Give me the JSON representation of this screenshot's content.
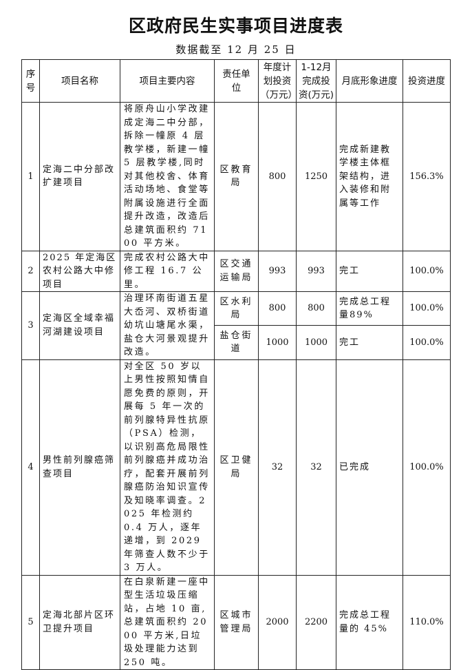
{
  "title": "区政府民生实事项目进度表",
  "subtitle": "数据截至 12 月 25 日",
  "headers": [
    "序号",
    "项目名称",
    "项目主要内容",
    "责任单位",
    "年度计划投资（万元）",
    "1-12月完成投资(万元)",
    "月底形象进度",
    "投资进度"
  ],
  "rows": [
    {
      "no": "1",
      "name": "定海二中分部改扩建项目",
      "content": "将原舟山小学改建成定海二中分部，拆除一幢原 4 层教学楼，新建一幢 5 层教学楼,同时对其他校舍、体育活动场地、食堂等附属设施进行全面提升改造，改造后总建筑面积约 7100 平方米。",
      "unit": "区教育局",
      "plan": "800",
      "done": "1250",
      "progress": "完成新建教学楼主体框架结构，进入装修和附属等工作",
      "invest": "156.3%"
    },
    {
      "no": "2",
      "name": "2025 年定海区农村公路大中修项目",
      "content": "完成农村公路大中修工程 16.7 公里。",
      "unit": "区交通运输局",
      "plan": "993",
      "done": "993",
      "progress": "完工",
      "invest": "100.0%"
    },
    {
      "no": "3",
      "name": "定海区全域幸福河湖建设项目",
      "content": "治理环南街道五星大岙河、双桥街道幼坑山塘尾水渠，盐仓大河景观提升改造。",
      "sub": [
        {
          "unit": "区水利局",
          "plan": "800",
          "done": "800",
          "progress": "完成总工程量89%",
          "invest": "100.0%"
        },
        {
          "unit": "盐仓街道",
          "plan": "1000",
          "done": "1000",
          "progress": "完工",
          "invest": "100.0%"
        }
      ]
    },
    {
      "no": "4",
      "name": "男性前列腺癌筛查项目",
      "content": "对全区 50 岁以上男性按照知情自愿免费的原则，开展每 5 年一次的前列腺特异性抗原（PSA）检测，以识别高危局限性前列腺癌并成功治疗，配套开展前列腺癌防治知识宣传及知晓率调查。2025 年检测约 0.4 万人，逐年递增，到 2029 年筛查人数不少于 3 万人。",
      "unit": "区卫健局",
      "plan": "32",
      "done": "32",
      "progress": "已完成",
      "invest": "100.0%"
    },
    {
      "no": "5",
      "name": "定海北部片区环卫提升项目",
      "content": "在白泉新建一座中型生活垃圾压缩站，占地 10 亩,总建筑面积约 2000 平方米,日垃圾处理能力达到 250 吨。",
      "unit": "区城市管理局",
      "plan": "2000",
      "done": "2200",
      "progress": "完成总工程量的 45%",
      "invest": "110.0%"
    }
  ]
}
